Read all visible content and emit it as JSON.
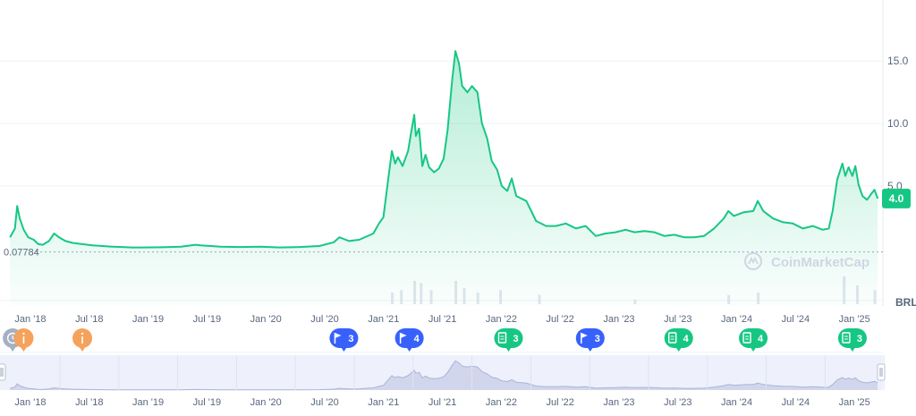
{
  "chart_data": {
    "type": "area",
    "y_ticks": [
      "15.0",
      "10.0",
      "5.0"
    ],
    "ylim": [
      -4.6,
      19.6
    ],
    "x_ticks": [
      "Jan '18",
      "Jul '18",
      "Jan '19",
      "Jul '19",
      "Jan '20",
      "Jul '20",
      "Jan '21",
      "Jul '21",
      "Jan '22",
      "Jul '22",
      "Jan '23",
      "Jul '23",
      "Jan '24",
      "Jul '24",
      "Jan '25"
    ],
    "xlim": [
      "2017-10-20",
      "2025-04-05"
    ],
    "current_price": "4.0",
    "low_label": "0.07784",
    "low_value": 0.07784,
    "currency": "BRL",
    "watermark": "CoinMarketCap",
    "series": [
      {
        "color": "#16c784",
        "points": [
          [
            "2017-11-20",
            0.9
          ],
          [
            "2017-12-05",
            1.6
          ],
          [
            "2017-12-12",
            3.4
          ],
          [
            "2017-12-20",
            2.4
          ],
          [
            "2018-01-01",
            1.5
          ],
          [
            "2018-01-15",
            0.9
          ],
          [
            "2018-02-01",
            0.7
          ],
          [
            "2018-02-15",
            0.35
          ],
          [
            "2018-03-01",
            0.3
          ],
          [
            "2018-03-20",
            0.6
          ],
          [
            "2018-04-05",
            1.2
          ],
          [
            "2018-04-20",
            0.9
          ],
          [
            "2018-05-10",
            0.6
          ],
          [
            "2018-06-01",
            0.45
          ],
          [
            "2018-07-01",
            0.35
          ],
          [
            "2018-08-01",
            0.25
          ],
          [
            "2018-09-01",
            0.2
          ],
          [
            "2018-10-01",
            0.15
          ],
          [
            "2018-11-01",
            0.12
          ],
          [
            "2018-12-01",
            0.08
          ],
          [
            "2019-01-01",
            0.08
          ],
          [
            "2019-03-01",
            0.1
          ],
          [
            "2019-05-01",
            0.14
          ],
          [
            "2019-06-15",
            0.3
          ],
          [
            "2019-07-01",
            0.25
          ],
          [
            "2019-09-01",
            0.15
          ],
          [
            "2019-11-01",
            0.12
          ],
          [
            "2020-01-01",
            0.14
          ],
          [
            "2020-03-01",
            0.08
          ],
          [
            "2020-05-01",
            0.12
          ],
          [
            "2020-07-01",
            0.2
          ],
          [
            "2020-08-15",
            0.5
          ],
          [
            "2020-09-01",
            0.9
          ],
          [
            "2020-10-01",
            0.6
          ],
          [
            "2020-11-01",
            0.7
          ],
          [
            "2020-12-15",
            1.2
          ],
          [
            "2021-01-01",
            2.0
          ],
          [
            "2021-01-15",
            2.5
          ],
          [
            "2021-02-01",
            6.0
          ],
          [
            "2021-02-10",
            7.8
          ],
          [
            "2021-02-20",
            6.8
          ],
          [
            "2021-03-01",
            7.3
          ],
          [
            "2021-03-15",
            6.6
          ],
          [
            "2021-04-01",
            7.8
          ],
          [
            "2021-04-10",
            9.2
          ],
          [
            "2021-04-20",
            10.7
          ],
          [
            "2021-04-25",
            9.0
          ],
          [
            "2021-05-05",
            9.6
          ],
          [
            "2021-05-15",
            6.6
          ],
          [
            "2021-05-25",
            7.5
          ],
          [
            "2021-06-05",
            6.5
          ],
          [
            "2021-06-20",
            6.1
          ],
          [
            "2021-07-05",
            6.4
          ],
          [
            "2021-07-20",
            7.2
          ],
          [
            "2021-08-01",
            9.5
          ],
          [
            "2021-08-15",
            13.5
          ],
          [
            "2021-08-25",
            15.8
          ],
          [
            "2021-09-05",
            14.8
          ],
          [
            "2021-09-15",
            13.0
          ],
          [
            "2021-10-01",
            12.5
          ],
          [
            "2021-10-15",
            13.0
          ],
          [
            "2021-11-01",
            12.5
          ],
          [
            "2021-11-15",
            10.0
          ],
          [
            "2021-12-01",
            8.8
          ],
          [
            "2021-12-15",
            7.0
          ],
          [
            "2022-01-01",
            6.3
          ],
          [
            "2022-01-15",
            5.0
          ],
          [
            "2022-02-01",
            4.6
          ],
          [
            "2022-02-15",
            5.6
          ],
          [
            "2022-03-01",
            4.2
          ],
          [
            "2022-04-01",
            3.8
          ],
          [
            "2022-05-01",
            2.2
          ],
          [
            "2022-06-01",
            1.8
          ],
          [
            "2022-07-01",
            1.8
          ],
          [
            "2022-08-01",
            2.0
          ],
          [
            "2022-09-01",
            1.6
          ],
          [
            "2022-10-01",
            1.8
          ],
          [
            "2022-11-01",
            1.0
          ],
          [
            "2022-12-01",
            1.2
          ],
          [
            "2023-01-01",
            1.3
          ],
          [
            "2023-02-01",
            1.5
          ],
          [
            "2023-03-01",
            1.3
          ],
          [
            "2023-04-01",
            1.4
          ],
          [
            "2023-05-01",
            1.3
          ],
          [
            "2023-06-01",
            1.0
          ],
          [
            "2023-07-01",
            1.1
          ],
          [
            "2023-08-01",
            0.9
          ],
          [
            "2023-09-01",
            0.9
          ],
          [
            "2023-10-01",
            1.0
          ],
          [
            "2023-11-01",
            1.6
          ],
          [
            "2023-12-01",
            2.4
          ],
          [
            "2023-12-15",
            3.0
          ],
          [
            "2024-01-01",
            2.6
          ],
          [
            "2024-02-01",
            2.9
          ],
          [
            "2024-03-01",
            3.0
          ],
          [
            "2024-03-15",
            3.8
          ],
          [
            "2024-04-01",
            3.0
          ],
          [
            "2024-05-01",
            2.4
          ],
          [
            "2024-06-01",
            2.1
          ],
          [
            "2024-07-01",
            2.0
          ],
          [
            "2024-08-01",
            1.6
          ],
          [
            "2024-09-01",
            1.8
          ],
          [
            "2024-10-01",
            1.5
          ],
          [
            "2024-10-20",
            1.6
          ],
          [
            "2024-11-01",
            3.0
          ],
          [
            "2024-11-15",
            5.5
          ],
          [
            "2024-12-01",
            6.8
          ],
          [
            "2024-12-10",
            5.8
          ],
          [
            "2024-12-20",
            6.5
          ],
          [
            "2025-01-01",
            5.8
          ],
          [
            "2025-01-10",
            6.6
          ],
          [
            "2025-01-20",
            5.1
          ],
          [
            "2025-02-01",
            4.2
          ],
          [
            "2025-02-15",
            3.9
          ],
          [
            "2025-03-01",
            4.4
          ],
          [
            "2025-03-10",
            4.7
          ],
          [
            "2025-03-20",
            4.0
          ]
        ]
      }
    ],
    "volume": [
      [
        "2021-02-10",
        0.25
      ],
      [
        "2021-03-10",
        0.3
      ],
      [
        "2021-04-20",
        0.5
      ],
      [
        "2021-05-10",
        0.45
      ],
      [
        "2021-06-10",
        0.3
      ],
      [
        "2021-08-25",
        0.5
      ],
      [
        "2021-09-20",
        0.35
      ],
      [
        "2021-11-01",
        0.25
      ],
      [
        "2022-01-10",
        0.3
      ],
      [
        "2022-05-10",
        0.2
      ],
      [
        "2023-03-01",
        0.1
      ],
      [
        "2023-12-15",
        0.2
      ],
      [
        "2024-03-15",
        0.25
      ],
      [
        "2024-12-05",
        0.6
      ],
      [
        "2025-01-15",
        0.4
      ],
      [
        "2025-03-10",
        0.3
      ]
    ],
    "events": [
      {
        "date": "2017-11-28",
        "kind": "history",
        "color": "#a6b0c3",
        "count": ""
      },
      {
        "date": "2018-01-01",
        "kind": "info",
        "color": "#f5a25d",
        "count": ""
      },
      {
        "date": "2018-07-01",
        "kind": "info",
        "color": "#f5a25d",
        "count": ""
      },
      {
        "date": "2020-09-15",
        "kind": "flag",
        "color": "#3861fb",
        "count": "3"
      },
      {
        "date": "2021-04-05",
        "kind": "flag",
        "color": "#3861fb",
        "count": "4"
      },
      {
        "date": "2022-02-05",
        "kind": "doc",
        "color": "#16c784",
        "count": "3"
      },
      {
        "date": "2022-10-15",
        "kind": "flag",
        "color": "#3861fb",
        "count": "3"
      },
      {
        "date": "2023-07-15",
        "kind": "doc",
        "color": "#16c784",
        "count": "4"
      },
      {
        "date": "2024-03-01",
        "kind": "doc",
        "color": "#16c784",
        "count": "4"
      },
      {
        "date": "2025-01-01",
        "kind": "doc",
        "color": "#16c784",
        "count": "3"
      }
    ]
  }
}
